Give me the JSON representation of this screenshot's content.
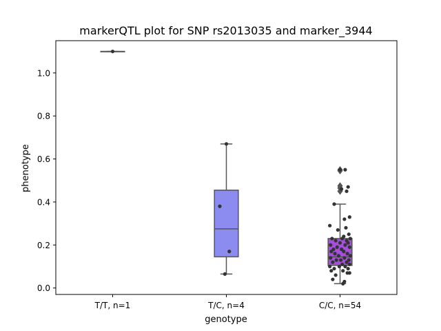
{
  "chart_data": {
    "type": "box",
    "title": "markerQTL plot for SNP rs2013035 and marker_3944",
    "xlabel": "genotype",
    "ylabel": "phenotype",
    "ylim": [
      -0.03,
      1.15
    ],
    "yticks": [
      0.0,
      0.2,
      0.4,
      0.6,
      0.8,
      1.0
    ],
    "ytick_labels": [
      "0.0",
      "0.2",
      "0.4",
      "0.6",
      "0.8",
      "1.0"
    ],
    "grid": false,
    "categories": [
      "T/T, n=1",
      "T/C, n=4",
      "C/C, n=54"
    ],
    "boxes": [
      {
        "category": "T/T, n=1",
        "color": "#1f77b4",
        "whisker_low": 1.1,
        "q1": 1.1,
        "median": 1.1,
        "q3": 1.1,
        "whisker_high": 1.1,
        "outliers": []
      },
      {
        "category": "T/C, n=4",
        "color": "#8c8cf0",
        "whisker_low": 0.065,
        "q1": 0.145,
        "median": 0.275,
        "q3": 0.455,
        "whisker_high": 0.67,
        "outliers": []
      },
      {
        "category": "C/C, n=54",
        "color": "#a550dc",
        "whisker_low": 0.02,
        "q1": 0.105,
        "median": 0.145,
        "q3": 0.23,
        "whisker_high": 0.39,
        "outliers": [
          0.45,
          0.465,
          0.475,
          0.545,
          0.55
        ]
      }
    ],
    "points": [
      {
        "category": "T/T, n=1",
        "values": [
          1.1
        ],
        "jitter": [
          0.0
        ]
      },
      {
        "category": "T/C, n=4",
        "values": [
          0.67,
          0.38,
          0.17,
          0.065
        ],
        "jitter": [
          0.0,
          -0.09,
          0.04,
          -0.02
        ]
      },
      {
        "category": "C/C, n=54",
        "values": [
          0.55,
          0.55,
          0.47,
          0.46,
          0.45,
          0.39,
          0.33,
          0.32,
          0.29,
          0.28,
          0.27,
          0.25,
          0.24,
          0.23,
          0.23,
          0.23,
          0.22,
          0.22,
          0.21,
          0.21,
          0.2,
          0.2,
          0.19,
          0.19,
          0.18,
          0.18,
          0.17,
          0.17,
          0.16,
          0.16,
          0.15,
          0.15,
          0.14,
          0.14,
          0.13,
          0.13,
          0.13,
          0.12,
          0.12,
          0.11,
          0.11,
          0.1,
          0.1,
          0.1,
          0.09,
          0.09,
          0.08,
          0.08,
          0.07,
          0.07,
          0.06,
          0.04,
          0.03,
          0.02
        ],
        "jitter": [
          0.0,
          0.07,
          0.11,
          0.02,
          0.09,
          -0.08,
          0.13,
          0.06,
          -0.14,
          0.08,
          -0.03,
          0.12,
          0.05,
          -0.11,
          0.03,
          0.14,
          -0.06,
          0.09,
          0.0,
          0.11,
          -0.13,
          0.07,
          -0.04,
          0.13,
          -0.09,
          0.02,
          -0.12,
          0.05,
          0.1,
          -0.07,
          0.14,
          -0.02,
          0.06,
          -0.13,
          0.12,
          0.01,
          -0.05,
          0.09,
          -0.1,
          0.03,
          0.13,
          -0.14,
          0.07,
          -0.01,
          0.11,
          -0.08,
          0.04,
          -0.12,
          0.1,
          0.13,
          -0.06,
          -0.1,
          0.06,
          0.04
        ]
      }
    ],
    "point_color": "#333333"
  }
}
